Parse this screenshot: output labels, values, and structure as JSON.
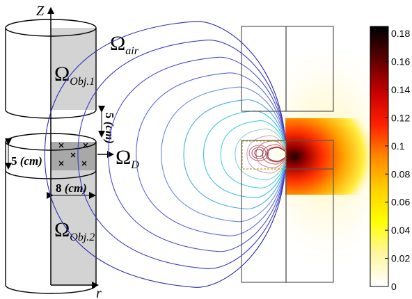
{
  "left_diagram": {
    "axis_z": "Z",
    "axis_r": "r",
    "omega_air": {
      "sym": "Ω",
      "sub": "air"
    },
    "omega_obj1": {
      "sym": "Ω",
      "sub": "Obj.1"
    },
    "omega_obj2": {
      "sym": "Ω",
      "sub": "Obj.2"
    },
    "omega_d": {
      "sym": "Ω",
      "sub": "D"
    },
    "gap_label": {
      "num": "5 ",
      "unit": "(cm)"
    },
    "height_label": {
      "num": "5 ",
      "unit": "(cm)"
    },
    "width_label": {
      "num": "8 ",
      "unit": "(cm)"
    },
    "arrow_to_d": "→"
  },
  "colorbar": {
    "ticks": [
      "0.18",
      "0.16",
      "0.14",
      "0.12",
      "0.1",
      "0.08",
      "0.06",
      "0.04",
      "0.02",
      "0"
    ],
    "min": 0,
    "max": 0.185,
    "colormap": [
      "#ffffff",
      "#fff6a0",
      "#ffff00",
      "#ffd000",
      "#ff8800",
      "#ff2000",
      "#c80000",
      "#600000",
      "#000000"
    ]
  },
  "contour_colors": [
    "#2a2ab8",
    "#3838c8",
    "#4848d8",
    "#5868e0",
    "#6888e8",
    "#48a8f0",
    "#30c0f0",
    "#40d0e0",
    "#80d0d8",
    "#c8a8c0",
    "#d08090",
    "#c86070",
    "#b04050",
    "#903040"
  ]
}
